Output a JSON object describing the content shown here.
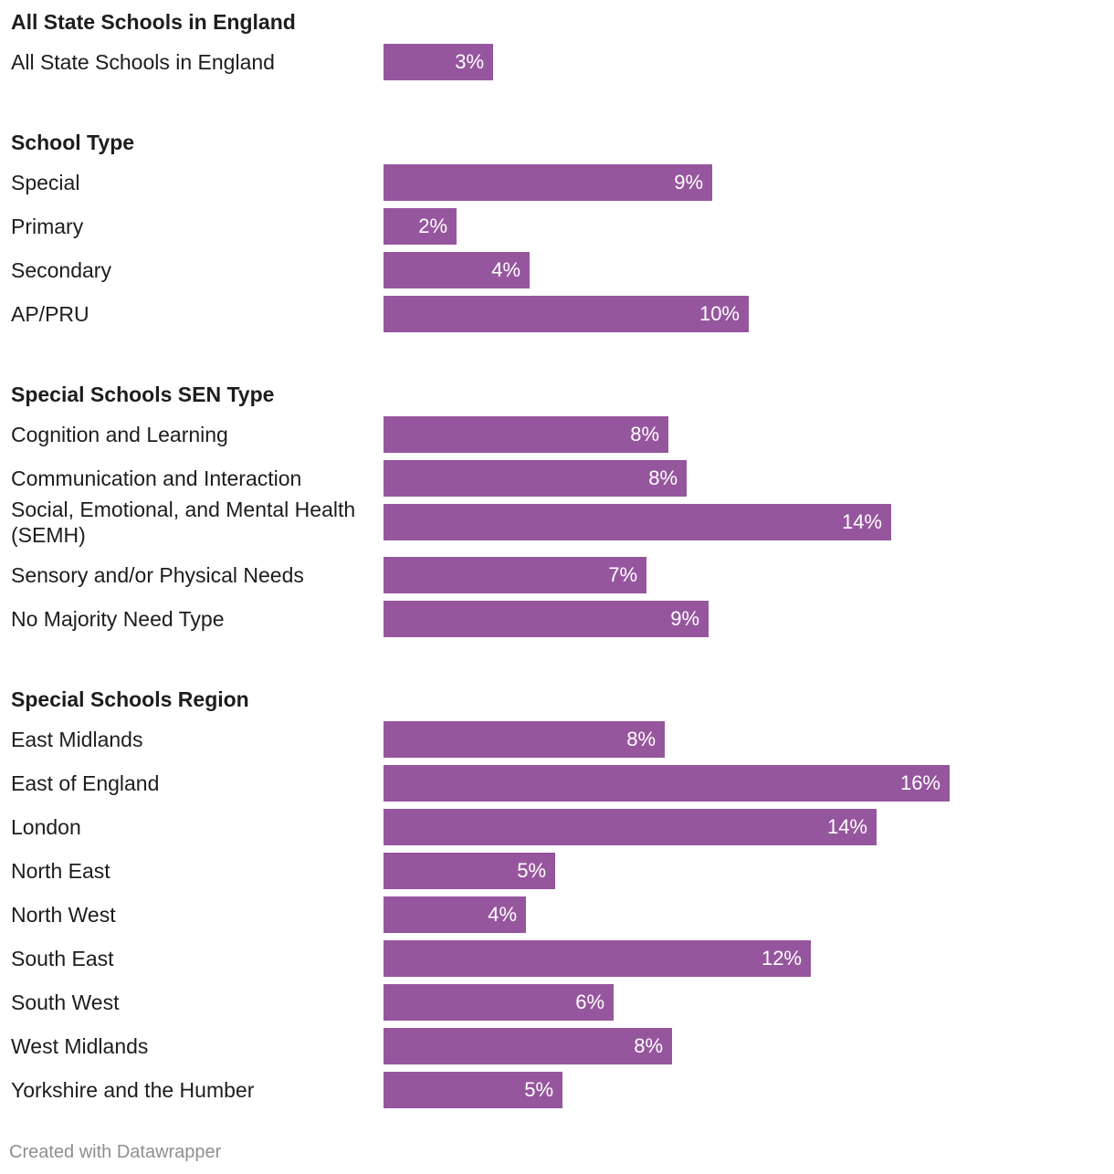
{
  "chart_data": {
    "type": "bar",
    "orientation": "horizontal",
    "bar_color": "#96569e",
    "value_format": "percent",
    "groups": [
      {
        "title": "All State Schools in England",
        "categories": [
          "All State Schools in England"
        ],
        "values": [
          3
        ],
        "labels": [
          "3%"
        ]
      },
      {
        "title": "School Type",
        "categories": [
          "Special",
          "Primary",
          "Secondary",
          "AP/PRU"
        ],
        "values": [
          9,
          2,
          4,
          10
        ],
        "labels": [
          "9%",
          "2%",
          "4%",
          "10%"
        ]
      },
      {
        "title": "Special Schools SEN Type",
        "categories": [
          "Cognition and Learning",
          "Communication and Interaction",
          "Social, Emotional, and Mental Health (SEMH)",
          "Sensory and/or Physical Needs",
          "No Majority Need Type"
        ],
        "values": [
          7.8,
          8.3,
          13.9,
          7.2,
          8.9
        ],
        "labels": [
          "8%",
          "8%",
          "14%",
          "7%",
          "9%"
        ]
      },
      {
        "title": "Special Schools Region",
        "categories": [
          "East Midlands",
          "East of England",
          "London",
          "North East",
          "North West",
          "South East",
          "South West",
          "West Midlands",
          "Yorkshire and the Humber"
        ],
        "values": [
          7.7,
          15.5,
          13.5,
          4.7,
          3.9,
          11.7,
          6.3,
          7.9,
          4.9
        ],
        "labels": [
          "8%",
          "16%",
          "14%",
          "5%",
          "4%",
          "12%",
          "6%",
          "8%",
          "5%"
        ]
      }
    ]
  },
  "footer": {
    "credit": "Created with Datawrapper"
  }
}
